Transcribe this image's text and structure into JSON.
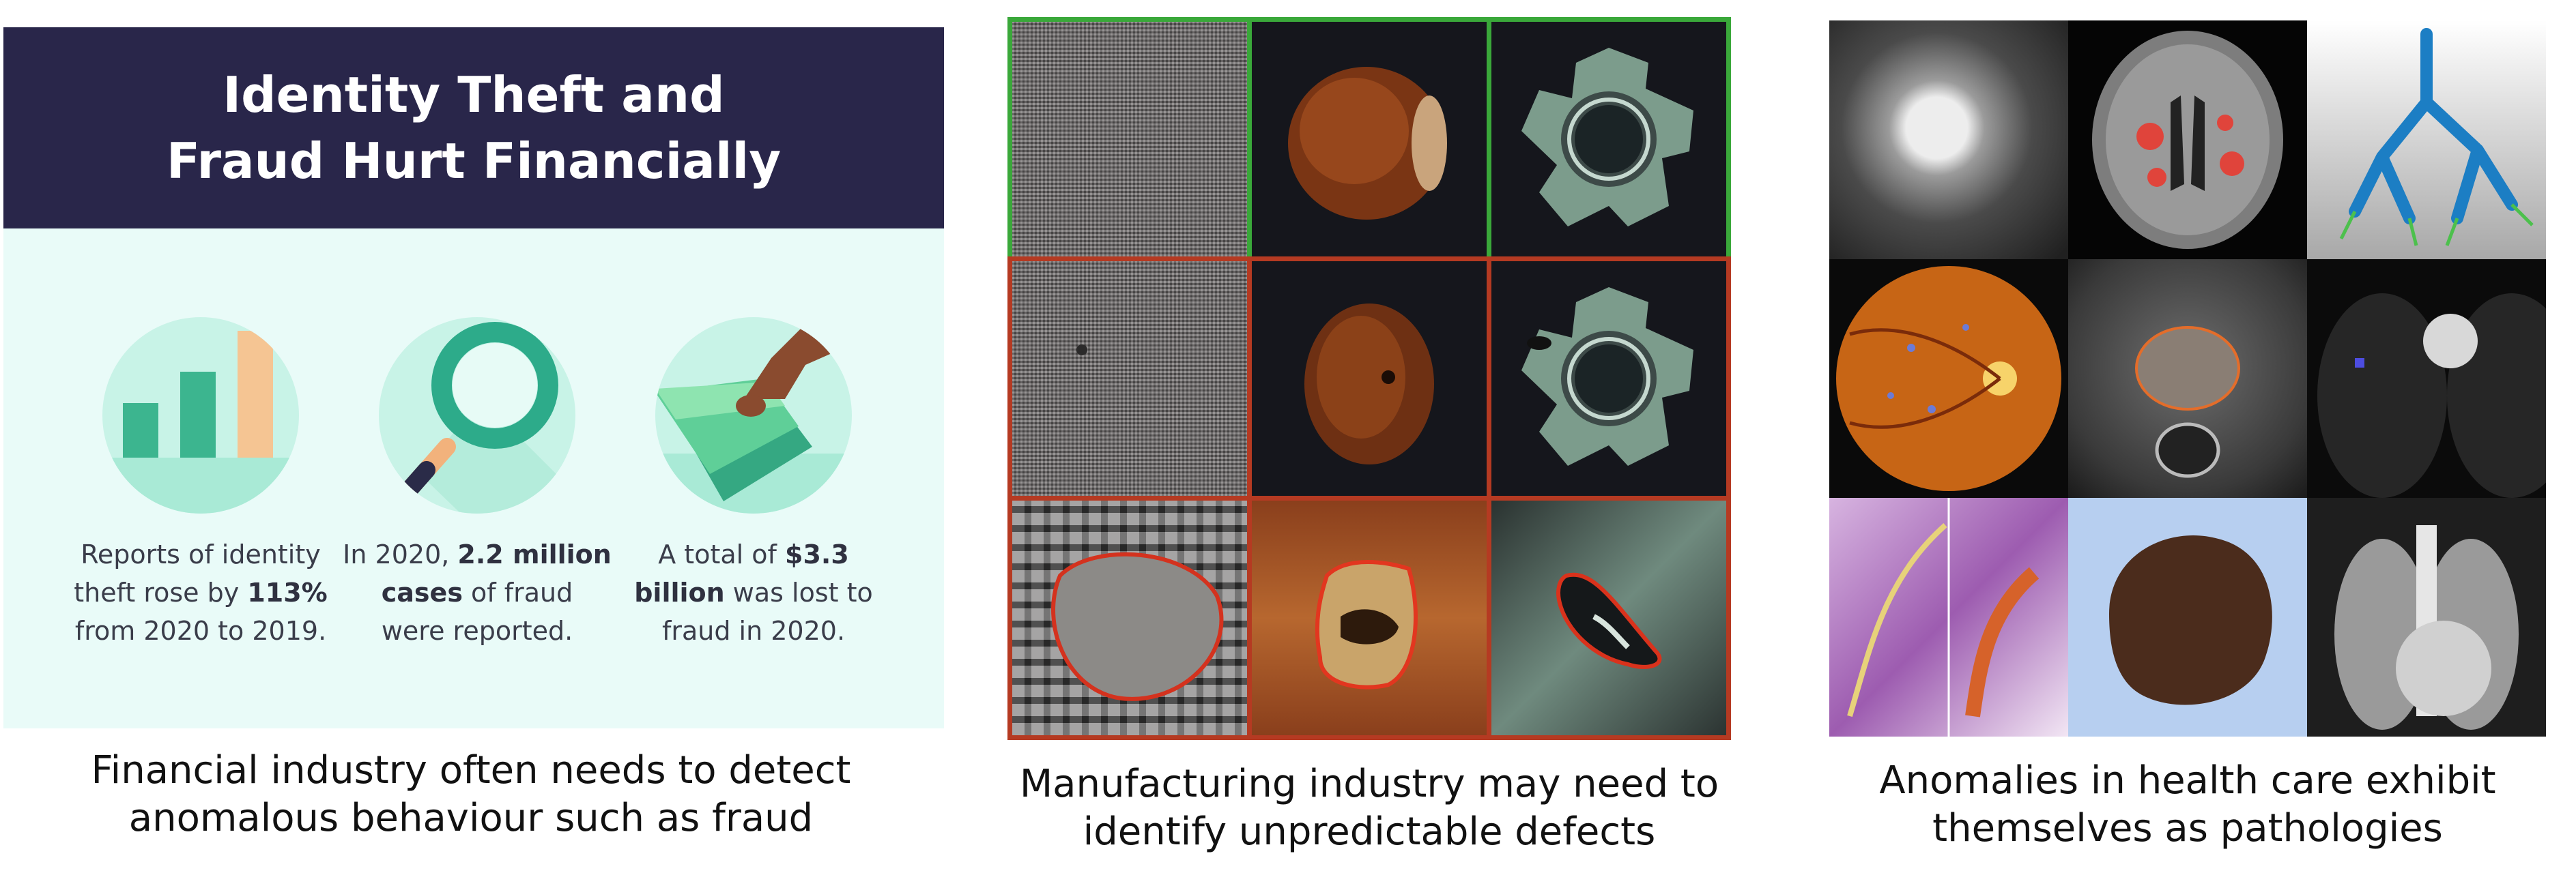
{
  "finance": {
    "title_line1": "Identity Theft and",
    "title_line2": "Fraud Hurt Financially",
    "stats": [
      {
        "icon": "bar-chart-icon",
        "text": [
          "Reports of identity",
          "theft rose by ",
          "113%",
          "from 2020 to 2019."
        ]
      },
      {
        "icon": "magnifier-icon",
        "text": [
          "In 2020, ",
          "2.2 million",
          "cases",
          " of fraud",
          "were reported."
        ]
      },
      {
        "icon": "money-hand-icon",
        "text": [
          "A total of ",
          "$3.3",
          "billion",
          " was lost to",
          "fraud in 2020."
        ]
      }
    ],
    "caption_line1": "Financial industry often needs to detect",
    "caption_line2": "anomalous behaviour such as fraud"
  },
  "manufacturing": {
    "caption_line1": "Manufacturing industry may need to",
    "caption_line2": "identify unpredictable defects",
    "rows": [
      "normal",
      "defective",
      "defect-outlined"
    ],
    "columns": [
      "fabric",
      "hazelnut",
      "metal-nut"
    ],
    "colors": {
      "normal_border": "#3aa83a",
      "defect_border": "#b53a22"
    }
  },
  "healthcare": {
    "caption_line1": "Anomalies in health care exhibit",
    "caption_line2": "themselves as pathologies",
    "images": [
      "mammogram",
      "brain-mri",
      "airway-tree",
      "retina-fundus",
      "prostate-mri",
      "chest-ct",
      "histology",
      "skin-lesion",
      "chest-xray"
    ]
  }
}
